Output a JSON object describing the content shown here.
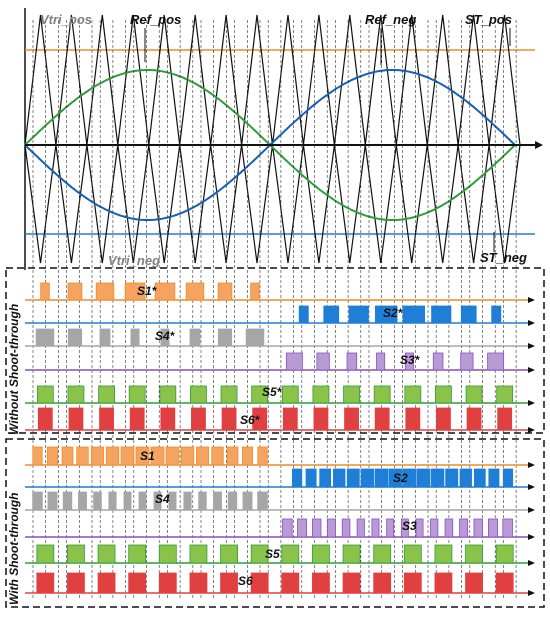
{
  "top_labels": {
    "vtri_pos": "Vtri_pos",
    "ref_pos": "Ref_pos",
    "ref_neg": "Ref_neg",
    "st_pos": "ST_pos",
    "vtri_neg": "Vtri_neg",
    "st_neg": "ST_neg"
  },
  "panels": {
    "without": "Without Shoot-through",
    "with": "With Shoot-through"
  },
  "signals_without": [
    "S1*",
    "S2*",
    "S4*",
    "S3*",
    "S5*",
    "S6*"
  ],
  "signals_with": [
    "S1",
    "S2",
    "S4",
    "S3",
    "S5",
    "S6"
  ],
  "colors": {
    "orange": "#f4a460",
    "orange_line": "#f08c28",
    "blue": "#1f7fd6",
    "gray": "#a6a6a6",
    "purple": "#b79ad6",
    "purple_line": "#8a4fc4",
    "green": "#8bc34a",
    "green_line": "#2e9e3a",
    "red": "#e04040",
    "ref_blue": "#1560b8"
  }
}
